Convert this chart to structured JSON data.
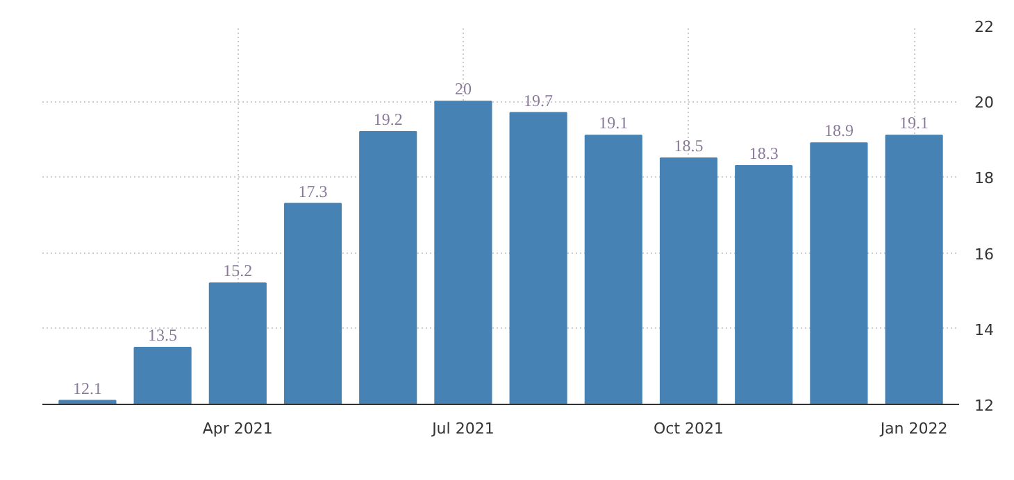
{
  "chart_data": {
    "type": "bar",
    "categories": [
      null,
      null,
      "Apr 2021",
      null,
      null,
      "Jul 2021",
      null,
      null,
      "Oct 2021",
      null,
      null,
      "Jan 2022"
    ],
    "values": [
      12.1,
      13.5,
      15.2,
      17.3,
      19.2,
      20,
      19.7,
      19.1,
      18.5,
      18.3,
      18.9,
      19.1
    ],
    "color": "#4682b4",
    "ylim": [
      12,
      22
    ],
    "yticks": [
      12,
      14,
      16,
      18,
      20,
      22
    ],
    "grid": true,
    "data_labels": true
  }
}
